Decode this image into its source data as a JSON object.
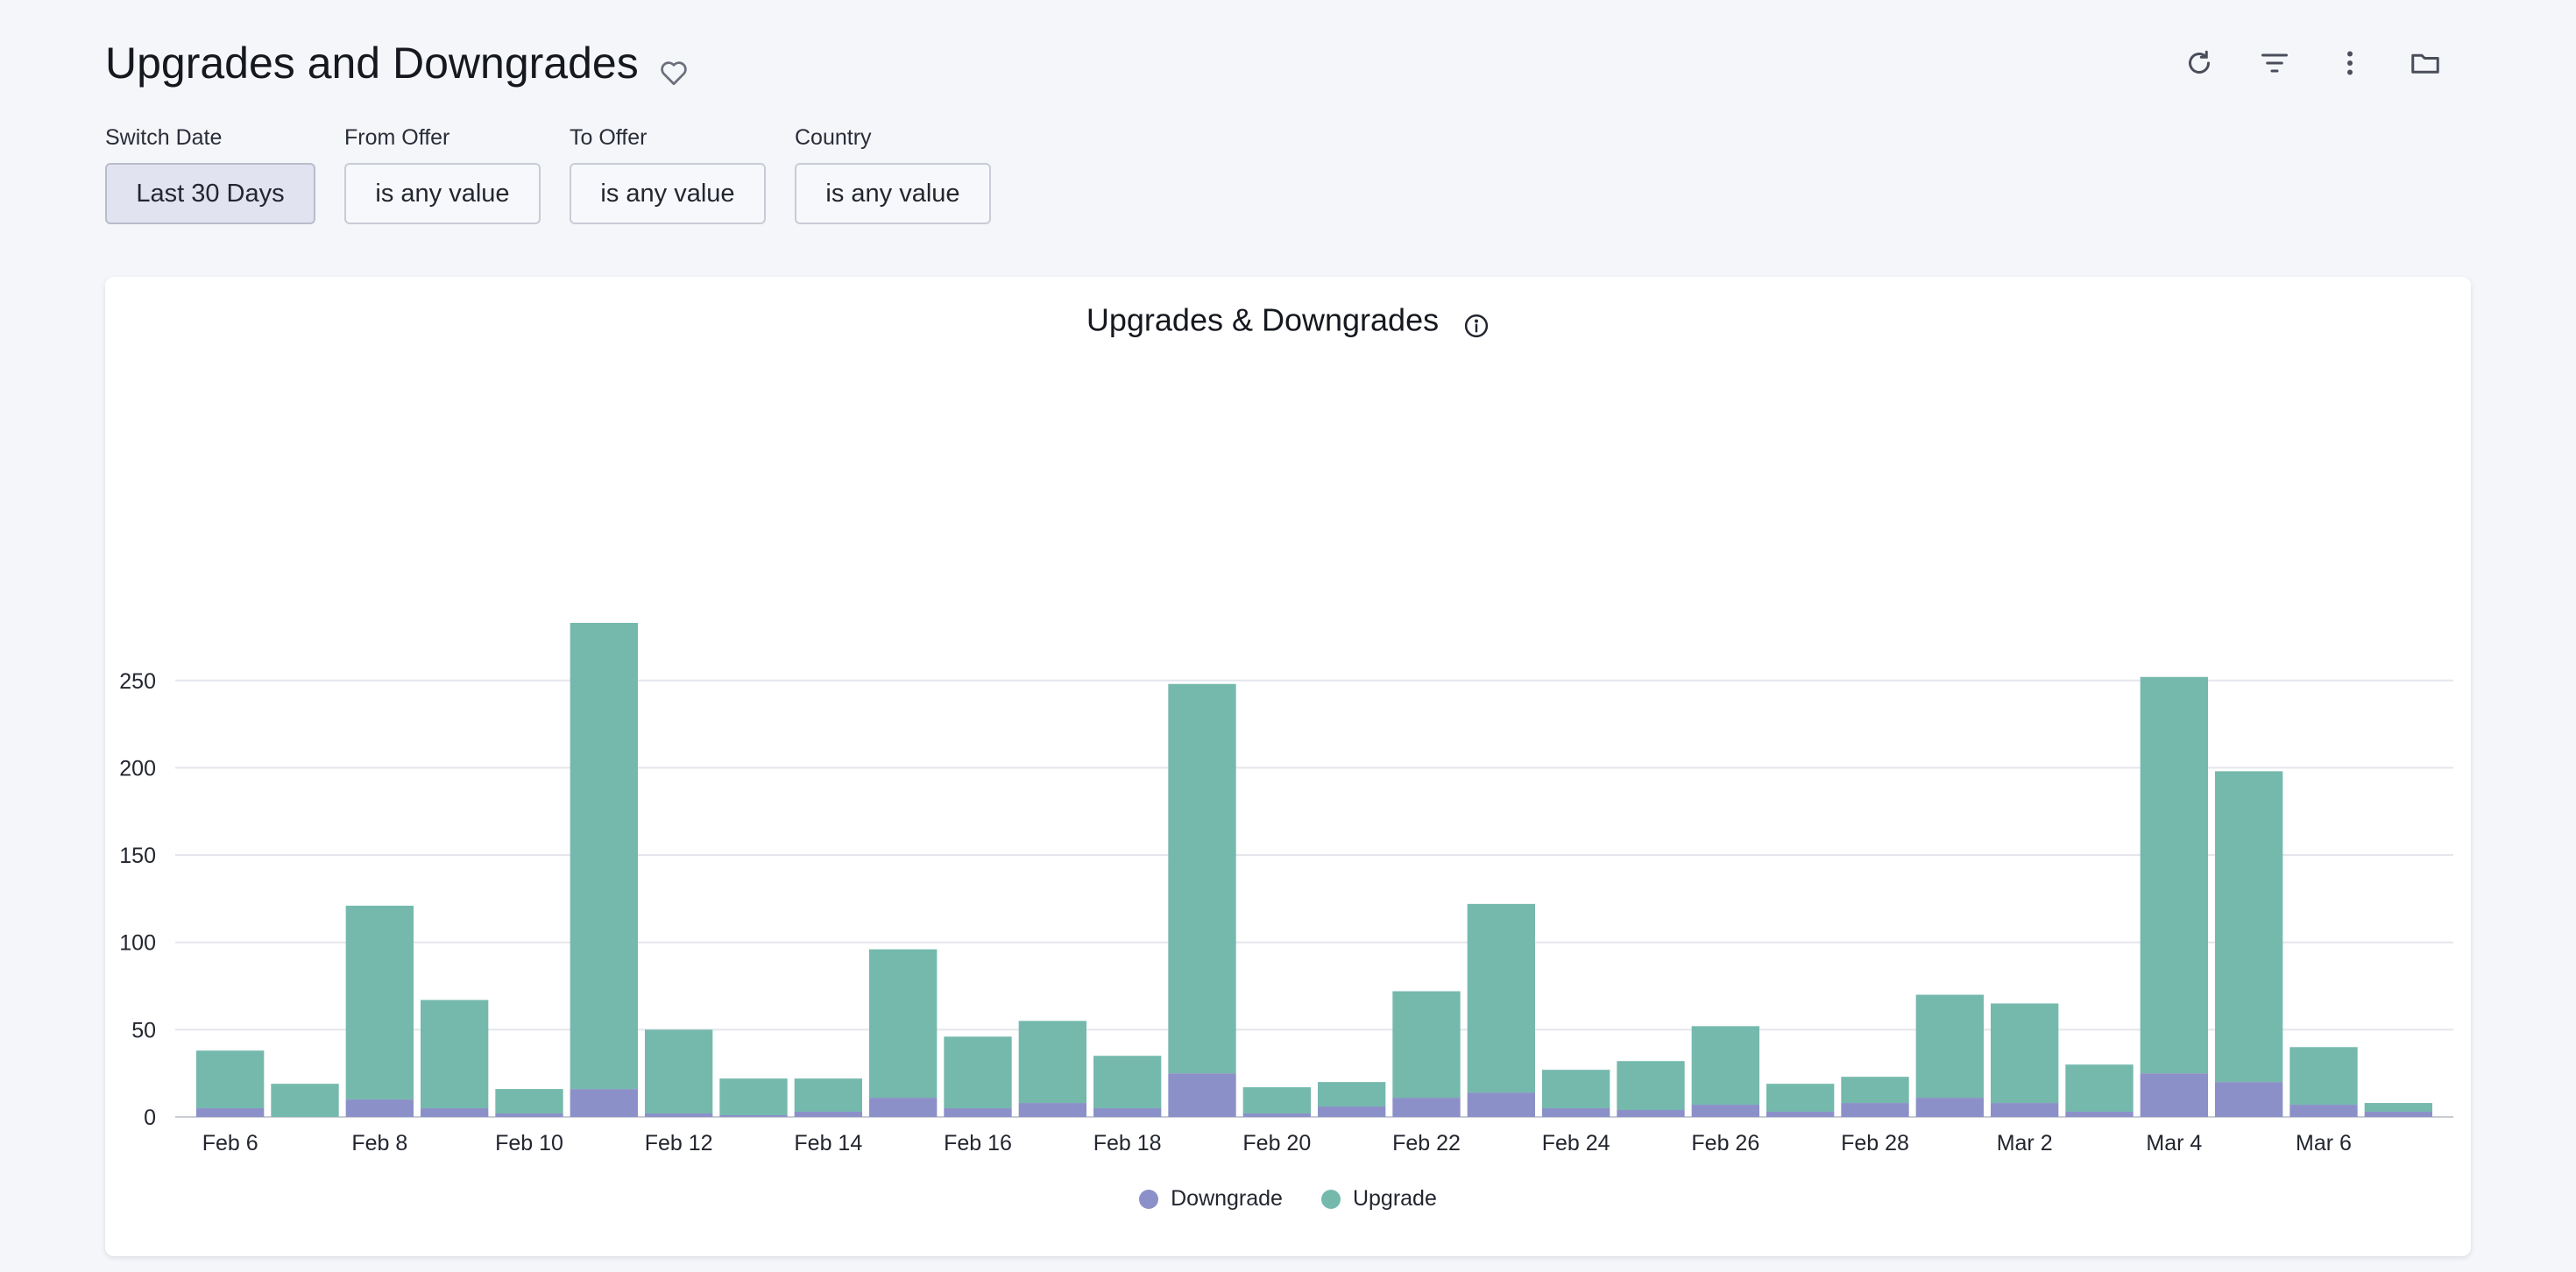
{
  "page": {
    "title": "Upgrades and Downgrades"
  },
  "toolbar": {
    "icons": [
      "refresh-icon",
      "filter-icon",
      "more-vertical-icon",
      "folder-icon"
    ]
  },
  "filters": [
    {
      "label": "Switch Date",
      "value": "Last 30 Days",
      "active": true
    },
    {
      "label": "From Offer",
      "value": "is any value",
      "active": false
    },
    {
      "label": "To Offer",
      "value": "is any value",
      "active": false
    },
    {
      "label": "Country",
      "value": "is any value",
      "active": false
    }
  ],
  "colors": {
    "downgrade": "#8b90c8",
    "upgrade": "#75b9ad",
    "grid": "#e4e6ec",
    "axis": "#c9ccd4"
  },
  "chart_data": {
    "type": "bar",
    "stacked": true,
    "title": "Upgrades & Downgrades",
    "categories": [
      "Feb 6",
      "Feb 7",
      "Feb 8",
      "Feb 9",
      "Feb 10",
      "Feb 11",
      "Feb 12",
      "Feb 13",
      "Feb 14",
      "Feb 15",
      "Feb 16",
      "Feb 17",
      "Feb 18",
      "Feb 19",
      "Feb 20",
      "Feb 21",
      "Feb 22",
      "Feb 23",
      "Feb 24",
      "Feb 25",
      "Feb 26",
      "Feb 27",
      "Feb 28",
      "Mar 1",
      "Mar 2",
      "Mar 3",
      "Mar 4",
      "Mar 5",
      "Mar 6",
      "Mar 7"
    ],
    "tick_labels": [
      "Feb 6",
      "Feb 8",
      "Feb 10",
      "Feb 12",
      "Feb 14",
      "Feb 16",
      "Feb 18",
      "Feb 20",
      "Feb 22",
      "Feb 24",
      "Feb 26",
      "Feb 28",
      "Mar 2",
      "Mar 4",
      "Mar 6"
    ],
    "series": [
      {
        "name": "Downgrade",
        "values": [
          5,
          0,
          10,
          5,
          2,
          16,
          2,
          1,
          3,
          11,
          5,
          8,
          5,
          25,
          2,
          6,
          11,
          14,
          5,
          4,
          7,
          3,
          8,
          11,
          8,
          3,
          25,
          20,
          7,
          3
        ]
      },
      {
        "name": "Upgrade",
        "values": [
          33,
          19,
          111,
          62,
          14,
          267,
          48,
          21,
          19,
          85,
          41,
          47,
          30,
          223,
          15,
          14,
          61,
          108,
          22,
          28,
          45,
          16,
          15,
          59,
          57,
          27,
          227,
          178,
          33,
          5
        ]
      }
    ],
    "yticks": [
      0,
      50,
      100,
      150,
      200,
      250
    ],
    "ylim": [
      0,
      285
    ],
    "xlabel": "",
    "ylabel": "",
    "grid": true,
    "legend": "bottom-center"
  }
}
